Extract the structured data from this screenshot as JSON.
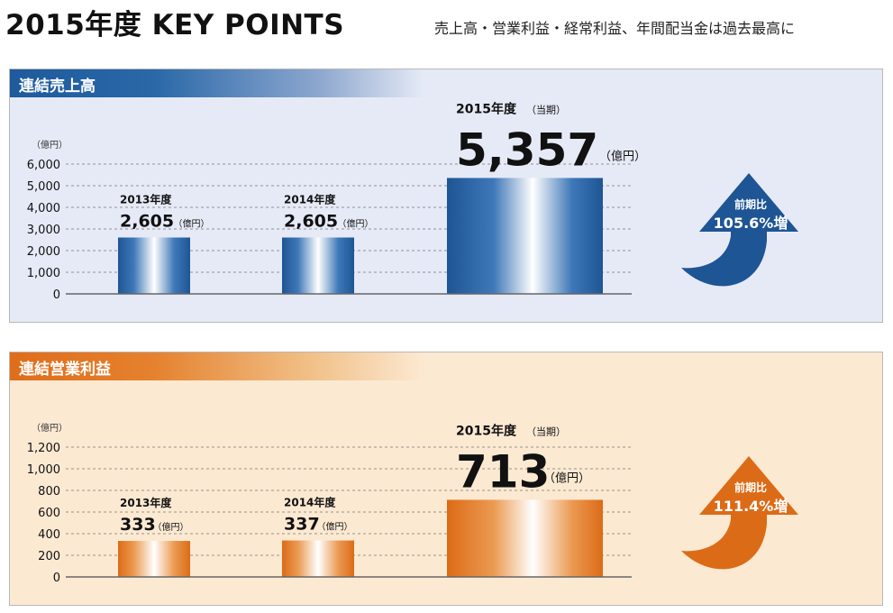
{
  "header": {
    "title": "2015年度  KEY POINTS",
    "subtitle": "売上高・営業利益・経常利益、年間配当金は過去最高に"
  },
  "colors": {
    "blue_dark": "#1e5a9c",
    "blue_panel_bg": "#e6eaf6",
    "orange_dark": "#df6d1a",
    "orange_panel_bg": "#fce9d2"
  },
  "chart_data": [
    {
      "type": "bar",
      "title": "連結売上高",
      "unit_label": "（億円）",
      "categories": [
        "2013年度",
        "2014年度",
        "2015年度"
      ],
      "values": [
        2605,
        2605,
        5357
      ],
      "value_labels": [
        "2,605",
        "2,605",
        "5,357"
      ],
      "value_unit": "（億円）",
      "current_tag": "（当期）",
      "ylim": [
        0,
        6000
      ],
      "yticks": [
        0,
        1000,
        2000,
        3000,
        4000,
        5000,
        6000
      ],
      "ytick_labels": [
        "0",
        "1,000",
        "2,000",
        "3,000",
        "4,000",
        "5,000",
        "6,000"
      ],
      "grid": true,
      "yoy": {
        "label": "前期比",
        "value": "105.6%増"
      },
      "theme": "blue"
    },
    {
      "type": "bar",
      "title": "連結営業利益",
      "unit_label": "（億円）",
      "categories": [
        "2013年度",
        "2014年度",
        "2015年度"
      ],
      "values": [
        333,
        337,
        713
      ],
      "value_labels": [
        "333",
        "337",
        "713"
      ],
      "value_unit": "（億円）",
      "current_tag": "（当期）",
      "ylim": [
        0,
        1200
      ],
      "yticks": [
        0,
        200,
        400,
        600,
        800,
        1000,
        1200
      ],
      "ytick_labels": [
        "0",
        "200",
        "400",
        "600",
        "800",
        "1,000",
        "1,200"
      ],
      "grid": true,
      "yoy": {
        "label": "前期比",
        "value": "111.4%増"
      },
      "theme": "orange"
    }
  ]
}
